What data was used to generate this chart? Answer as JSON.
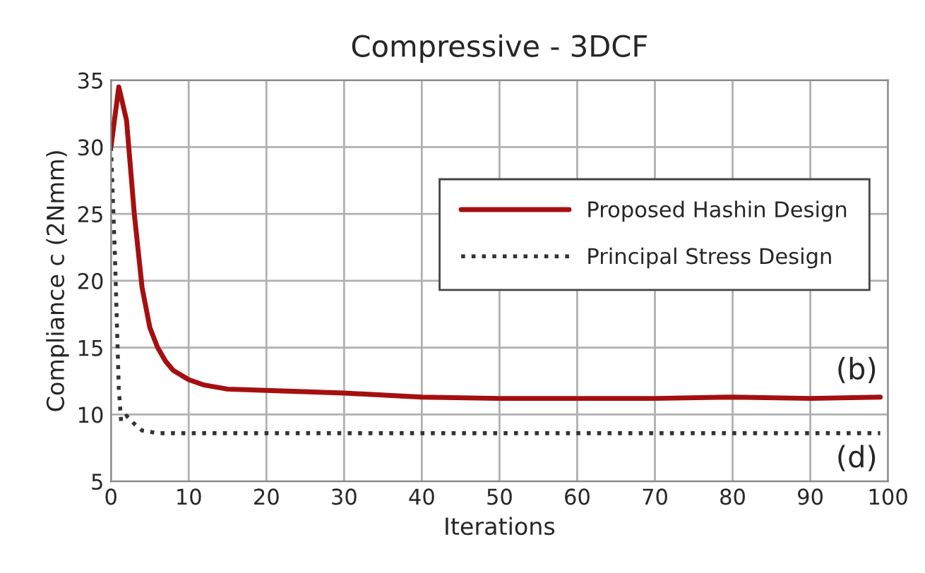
{
  "chart_data": {
    "type": "line",
    "title": "Compressive - 3DCF",
    "xlabel": "Iterations",
    "ylabel": "Compliance c (2Nmm)",
    "xlim": [
      0,
      100
    ],
    "xticks": [
      0,
      10,
      20,
      30,
      40,
      50,
      60,
      70,
      80,
      90,
      100
    ],
    "ylim": [
      5,
      35
    ],
    "yticks": [
      5,
      10,
      15,
      20,
      25,
      30,
      35
    ],
    "grid": true,
    "legend": "top right",
    "series": [
      {
        "name": "Proposed Hashin Design",
        "color": "#a50f0f",
        "line_style": "solid",
        "x": [
          0,
          1,
          2,
          3,
          4,
          5,
          6,
          7,
          8,
          10,
          12,
          15,
          20,
          30,
          40,
          50,
          60,
          70,
          80,
          90,
          99
        ],
        "values": [
          30,
          34.5,
          32,
          25,
          19.5,
          16.5,
          15,
          14,
          13.3,
          12.6,
          12.2,
          11.9,
          11.8,
          11.6,
          11.3,
          11.2,
          11.2,
          11.2,
          11.3,
          11.2,
          11.3
        ]
      },
      {
        "name": "Principal Stress Design",
        "color": "#333333",
        "line_style": "dotted",
        "x": [
          0,
          0.5,
          1,
          1.3,
          2,
          3,
          4,
          6,
          10,
          30,
          60,
          99
        ],
        "values": [
          30,
          22,
          12,
          9.5,
          9.9,
          9.3,
          8.8,
          8.6,
          8.6,
          8.6,
          8.6,
          8.6
        ]
      }
    ],
    "annotations": [
      "(b)",
      "(d)"
    ]
  }
}
